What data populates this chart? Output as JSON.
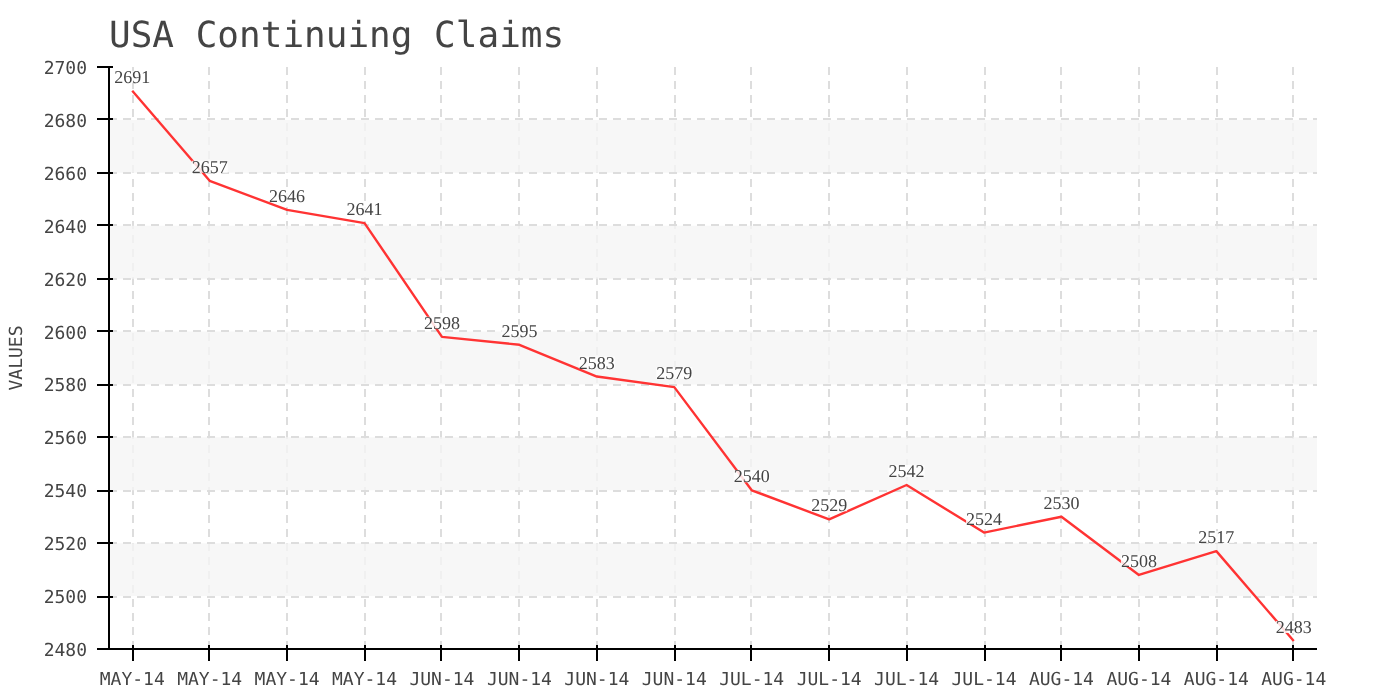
{
  "chart_data": {
    "type": "line",
    "title": "USA Continuing Claims",
    "ylabel": "VALUES",
    "categories": [
      "MAY-14",
      "MAY-14",
      "MAY-14",
      "MAY-14",
      "JUN-14",
      "JUN-14",
      "JUN-14",
      "JUN-14",
      "JUL-14",
      "JUL-14",
      "JUL-14",
      "JUL-14",
      "AUG-14",
      "AUG-14",
      "AUG-14",
      "AUG-14"
    ],
    "series": [
      {
        "color": "#ff3333",
        "values": [
          2691,
          2657,
          2646,
          2641,
          2598,
          2595,
          2583,
          2579,
          2540,
          2529,
          2542,
          2524,
          2530,
          2508,
          2517,
          2483
        ]
      }
    ],
    "ylim": [
      2480,
      2700
    ],
    "yticks": [
      2480,
      2500,
      2520,
      2540,
      2560,
      2580,
      2600,
      2620,
      2640,
      2660,
      2680,
      2700
    ],
    "grid": true,
    "data_labels": true
  }
}
